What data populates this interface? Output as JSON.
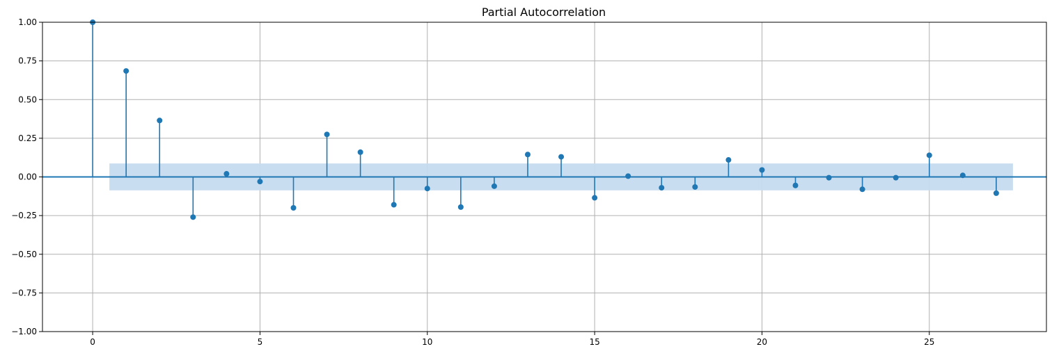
{
  "chart_data": {
    "type": "stem",
    "title": "Partial Autocorrelation",
    "xlabel": "",
    "ylabel": "",
    "xlim": [
      -1.5,
      28.5
    ],
    "ylim": [
      -1.0,
      1.0
    ],
    "x_ticks": [
      0,
      5,
      10,
      15,
      20,
      25
    ],
    "y_ticks": [
      -1.0,
      -0.75,
      -0.5,
      -0.25,
      0.0,
      0.25,
      0.5,
      0.75,
      1.0
    ],
    "x_tick_labels": [
      "0",
      "5",
      "10",
      "15",
      "20",
      "25"
    ],
    "y_tick_labels": [
      "−1.00",
      "−0.75",
      "−0.50",
      "−0.25",
      "0.00",
      "0.25",
      "0.50",
      "0.75",
      "1.00"
    ],
    "grid": true,
    "colors": {
      "series": "#1f77b4",
      "band": "#c6dbef",
      "grid": "#b0b0b0"
    },
    "lags": [
      0,
      1,
      2,
      3,
      4,
      5,
      6,
      7,
      8,
      9,
      10,
      11,
      12,
      13,
      14,
      15,
      16,
      17,
      18,
      19,
      20,
      21,
      22,
      23,
      24,
      25,
      26,
      27
    ],
    "values": [
      1.0,
      0.685,
      0.365,
      -0.26,
      0.02,
      -0.03,
      -0.2,
      0.275,
      0.16,
      -0.18,
      -0.075,
      -0.195,
      -0.06,
      0.145,
      0.13,
      -0.135,
      0.005,
      -0.07,
      -0.065,
      0.11,
      0.045,
      -0.055,
      -0.005,
      -0.08,
      -0.005,
      0.14,
      0.01,
      -0.105
    ],
    "confidence_band": {
      "x_range": [
        0.5,
        27.5
      ],
      "upper": 0.087,
      "lower": -0.087
    }
  }
}
